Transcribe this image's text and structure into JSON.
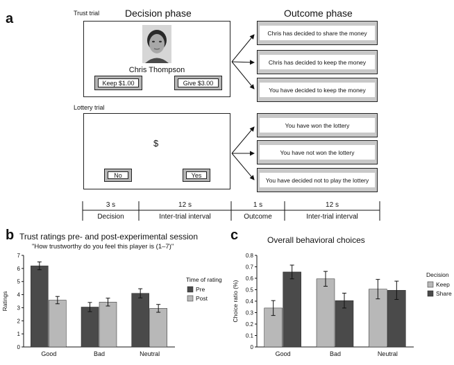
{
  "panel_a": {
    "letter": "a",
    "trust_label": "Trust trial",
    "decision_title": "Decision phase",
    "outcome_title": "Outcome phase",
    "player_name": "Chris Thompson",
    "keep_button": "Keep $1.00",
    "give_button": "Give $3.00",
    "trust_outcomes": [
      "Chris has decided to share the money",
      "Chris has decided to keep the money",
      "You have decided to keep the money"
    ],
    "lottery_label": "Lottery trial",
    "dollar_symbol": "$",
    "no_button": "No",
    "yes_button": "Yes",
    "lottery_outcomes": [
      "You have won the lottery",
      "You have not won the lottery",
      "You have decided not to play the lottery"
    ],
    "timeline": [
      {
        "duration": "3 s",
        "label": "Decision"
      },
      {
        "duration": "12 s",
        "label": "Inter-trial interval"
      },
      {
        "duration": "1 s",
        "label": "Outcome"
      },
      {
        "duration": "12 s",
        "label": "Inter-trial interval"
      }
    ]
  },
  "chart_data": [
    {
      "panel": "b",
      "type": "bar",
      "title": "Trust ratings pre- and post-experimental session",
      "subtitle": "\"How trustworthy do you feel this player is (1–7)\"",
      "ylabel": "Ratings",
      "xlabel": "",
      "ylim": [
        0,
        7
      ],
      "yticks": [
        0,
        1,
        2,
        3,
        4,
        5,
        6,
        7
      ],
      "categories": [
        "Good",
        "Bad",
        "Neutral"
      ],
      "legend_title": "Time of rating",
      "series": [
        {
          "name": "Pre",
          "color": "#4a4a4a",
          "values": [
            6.2,
            3.05,
            4.1
          ],
          "errors": [
            0.3,
            0.35,
            0.35
          ]
        },
        {
          "name": "Post",
          "color": "#b8b8b8",
          "values": [
            3.58,
            3.43,
            2.95
          ],
          "errors": [
            0.28,
            0.3,
            0.3
          ]
        }
      ]
    },
    {
      "panel": "c",
      "type": "bar",
      "title": "Overall behavioral choices",
      "ylabel": "Choice ratio (%)",
      "xlabel": "",
      "ylim": [
        0,
        0.8
      ],
      "yticks": [
        "0",
        "0.1",
        "0.2",
        "0.3",
        "0.4",
        "0.5",
        "0.6",
        "0.7",
        "0.8"
      ],
      "categories": [
        "Good",
        "Bad",
        "Neutral"
      ],
      "legend_title": "Decision",
      "series": [
        {
          "name": "Keep",
          "color": "#b8b8b8",
          "values": [
            0.34,
            0.595,
            0.505
          ],
          "errors": [
            0.065,
            0.065,
            0.085
          ]
        },
        {
          "name": "Share",
          "color": "#4a4a4a",
          "values": [
            0.655,
            0.405,
            0.495
          ],
          "errors": [
            0.06,
            0.065,
            0.08
          ]
        }
      ]
    }
  ]
}
